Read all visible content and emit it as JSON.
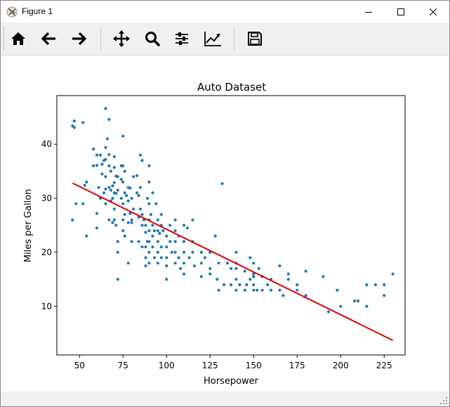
{
  "window": {
    "title": "Figure 1",
    "icon": "matplotlib-figure-icon",
    "controls": [
      "minimize-icon",
      "maximize-icon",
      "close-icon"
    ]
  },
  "toolbar": {
    "buttons": [
      {
        "name": "home-button",
        "icon": "home-icon"
      },
      {
        "name": "back-button",
        "icon": "arrow-left-icon"
      },
      {
        "name": "forward-button",
        "icon": "arrow-right-icon"
      },
      {
        "name": "pan-button",
        "icon": "move-icon"
      },
      {
        "name": "zoom-button",
        "icon": "magnifier-icon"
      },
      {
        "name": "configure-subplots-button",
        "icon": "sliders-icon"
      },
      {
        "name": "edit-axis-button",
        "icon": "line-chart-icon"
      },
      {
        "name": "save-button",
        "icon": "floppy-disk-icon"
      }
    ]
  },
  "chart_data": {
    "type": "scatter",
    "title": "Auto Dataset",
    "xlabel": "Horsepower",
    "ylabel": "Miles per Gallon",
    "xlim": [
      37,
      237
    ],
    "ylim": [
      1,
      49
    ],
    "xticks": [
      50,
      75,
      100,
      125,
      150,
      175,
      200,
      225
    ],
    "yticks": [
      10,
      20,
      30,
      40
    ],
    "grid": false,
    "marker_color": "#1f77b4",
    "fit_line": {
      "color": "#e00000",
      "x": [
        46,
        230
      ],
      "y": [
        32.8,
        3.7
      ]
    },
    "points": [
      [
        46,
        26
      ],
      [
        46,
        43.4
      ],
      [
        47,
        44.3
      ],
      [
        47,
        43.1
      ],
      [
        48,
        29
      ],
      [
        52,
        44
      ],
      [
        52,
        29
      ],
      [
        53,
        32.4
      ],
      [
        54,
        33
      ],
      [
        54,
        23
      ],
      [
        58,
        39.1
      ],
      [
        58,
        36
      ],
      [
        60,
        36.1
      ],
      [
        60,
        38
      ],
      [
        60,
        24.5
      ],
      [
        60,
        27.2
      ],
      [
        61,
        32
      ],
      [
        62,
        38
      ],
      [
        62,
        30
      ],
      [
        63,
        36.3
      ],
      [
        63,
        34.5
      ],
      [
        64,
        37
      ],
      [
        64,
        31
      ],
      [
        65,
        46.6
      ],
      [
        65,
        39.4
      ],
      [
        65,
        37.2
      ],
      [
        65,
        34
      ],
      [
        65,
        31.7
      ],
      [
        65,
        29
      ],
      [
        66,
        41
      ],
      [
        67,
        44.6
      ],
      [
        67,
        38.1
      ],
      [
        67,
        36
      ],
      [
        67,
        32
      ],
      [
        67,
        26
      ],
      [
        68,
        35
      ],
      [
        68,
        31.5
      ],
      [
        68,
        29.5
      ],
      [
        69,
        32.3
      ],
      [
        69,
        30
      ],
      [
        69,
        25.5
      ],
      [
        70,
        37.7
      ],
      [
        70,
        35.7
      ],
      [
        70,
        32.9
      ],
      [
        70,
        31
      ],
      [
        70,
        28
      ],
      [
        70,
        26
      ],
      [
        71,
        34.1
      ],
      [
        71,
        30.9
      ],
      [
        71,
        25
      ],
      [
        72,
        22
      ],
      [
        72,
        20
      ],
      [
        72,
        15
      ],
      [
        72,
        31.5
      ],
      [
        72,
        34
      ],
      [
        74,
        36
      ],
      [
        74,
        33.5
      ],
      [
        74,
        30
      ],
      [
        75,
        41.5
      ],
      [
        75,
        36
      ],
      [
        75,
        33
      ],
      [
        75,
        29
      ],
      [
        75,
        26
      ],
      [
        75,
        24
      ],
      [
        76,
        35
      ],
      [
        76,
        31
      ],
      [
        76,
        27
      ],
      [
        76,
        23
      ],
      [
        77,
        30.5
      ],
      [
        78,
        32
      ],
      [
        78,
        29.5
      ],
      [
        78,
        25.5
      ],
      [
        78,
        18
      ],
      [
        79,
        27.2
      ],
      [
        79,
        31.9
      ],
      [
        80,
        30
      ],
      [
        80,
        26
      ],
      [
        80,
        25.5
      ],
      [
        80,
        22
      ],
      [
        81,
        34
      ],
      [
        81,
        28
      ],
      [
        83,
        34.2
      ],
      [
        83,
        31
      ],
      [
        84,
        26.5
      ],
      [
        84,
        30.5
      ],
      [
        84,
        22
      ],
      [
        85,
        38
      ],
      [
        85,
        32
      ],
      [
        85,
        28
      ],
      [
        86,
        37
      ],
      [
        86,
        27
      ],
      [
        86,
        25
      ],
      [
        86,
        21
      ],
      [
        87,
        26
      ],
      [
        88,
        25
      ],
      [
        88,
        23.7
      ],
      [
        88,
        21
      ],
      [
        88,
        19
      ],
      [
        88,
        17.5
      ],
      [
        89,
        30
      ],
      [
        89,
        22
      ],
      [
        90,
        36
      ],
      [
        90,
        33
      ],
      [
        90,
        29
      ],
      [
        90,
        26
      ],
      [
        90,
        24
      ],
      [
        90,
        22
      ],
      [
        90,
        20
      ],
      [
        90,
        18
      ],
      [
        91,
        27
      ],
      [
        92,
        31
      ],
      [
        92,
        25
      ],
      [
        92,
        23
      ],
      [
        92,
        21
      ],
      [
        93,
        24
      ],
      [
        93,
        19
      ],
      [
        94,
        29
      ],
      [
        95,
        26
      ],
      [
        95,
        24
      ],
      [
        95,
        22
      ],
      [
        95,
        20
      ],
      [
        95,
        18
      ],
      [
        96,
        23.5
      ],
      [
        97,
        27
      ],
      [
        97,
        25
      ],
      [
        97,
        21
      ],
      [
        97,
        19
      ],
      [
        98,
        24
      ],
      [
        100,
        23
      ],
      [
        100,
        21
      ],
      [
        100,
        19
      ],
      [
        100,
        17.5
      ],
      [
        100,
        15
      ],
      [
        102,
        25
      ],
      [
        102,
        22
      ],
      [
        103,
        20
      ],
      [
        105,
        26
      ],
      [
        105,
        24
      ],
      [
        105,
        22
      ],
      [
        105,
        20
      ],
      [
        105,
        18
      ],
      [
        107,
        23
      ],
      [
        107,
        19
      ],
      [
        108,
        17
      ],
      [
        110,
        25
      ],
      [
        110,
        22
      ],
      [
        110,
        20
      ],
      [
        110,
        18
      ],
      [
        110,
        16
      ],
      [
        112,
        24.5
      ],
      [
        113,
        19
      ],
      [
        115,
        26
      ],
      [
        115,
        22
      ],
      [
        115,
        20
      ],
      [
        116,
        17.5
      ],
      [
        120,
        20
      ],
      [
        120,
        18
      ],
      [
        120,
        15.5
      ],
      [
        122,
        19
      ],
      [
        125,
        20
      ],
      [
        125,
        17
      ],
      [
        125,
        16
      ],
      [
        128,
        23
      ],
      [
        129,
        15
      ],
      [
        130,
        18
      ],
      [
        130,
        13
      ],
      [
        132,
        32.7
      ],
      [
        133,
        14
      ],
      [
        135,
        18
      ],
      [
        137,
        17
      ],
      [
        137,
        14
      ],
      [
        140,
        20
      ],
      [
        140,
        18
      ],
      [
        140,
        17
      ],
      [
        140,
        15
      ],
      [
        140,
        13
      ],
      [
        142,
        14
      ],
      [
        145,
        16.5
      ],
      [
        145,
        13
      ],
      [
        146,
        14
      ],
      [
        148,
        19
      ],
      [
        148,
        15
      ],
      [
        150,
        18
      ],
      [
        150,
        16
      ],
      [
        150,
        14
      ],
      [
        150,
        13
      ],
      [
        150,
        15.5
      ],
      [
        152,
        13
      ],
      [
        153,
        17
      ],
      [
        155,
        15.5
      ],
      [
        155,
        13
      ],
      [
        158,
        14
      ],
      [
        160,
        15
      ],
      [
        160,
        13
      ],
      [
        165,
        17.5
      ],
      [
        165,
        13
      ],
      [
        167,
        12
      ],
      [
        170,
        16
      ],
      [
        170,
        15
      ],
      [
        175,
        14
      ],
      [
        175,
        13
      ],
      [
        180,
        16.5
      ],
      [
        180,
        12
      ],
      [
        190,
        15.5
      ],
      [
        193,
        9
      ],
      [
        198,
        13
      ],
      [
        200,
        10
      ],
      [
        208,
        11
      ],
      [
        210,
        11
      ],
      [
        215,
        14
      ],
      [
        215,
        10
      ],
      [
        220,
        14
      ],
      [
        225,
        14
      ],
      [
        225,
        12
      ],
      [
        230,
        16
      ]
    ]
  }
}
